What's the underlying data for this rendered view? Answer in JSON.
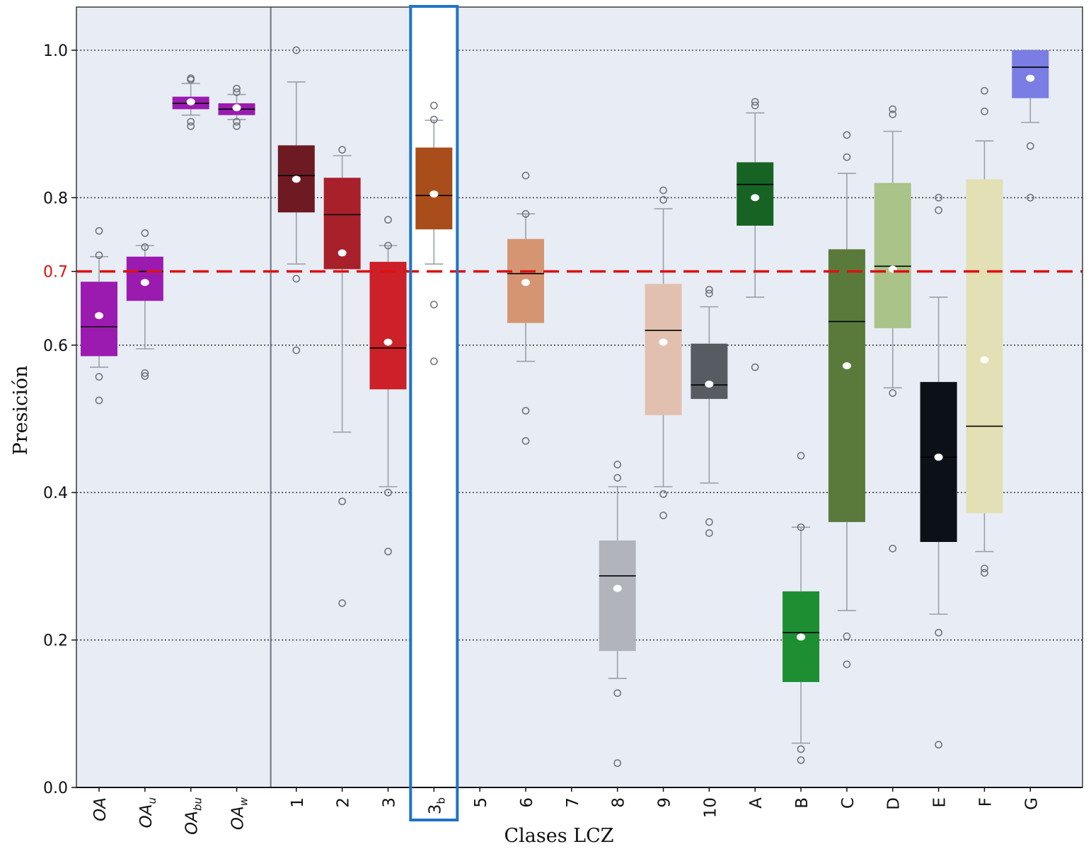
{
  "chart_data": {
    "type": "box",
    "title": "",
    "xlabel": "Clases LCZ",
    "ylabel": "Presición",
    "ylim": [
      0.0,
      1.05
    ],
    "yticks": [
      "0.0",
      "0.2",
      "0.4",
      "0.6",
      "0.7",
      "0.8",
      "1.0"
    ],
    "ytick_values": [
      0.0,
      0.2,
      0.4,
      0.6,
      0.7,
      0.8,
      1.0
    ],
    "grid": "horizontal dotted",
    "reference_line": {
      "value": 0.7,
      "label": "0.7",
      "color": "#dd1111",
      "style": "dashed"
    },
    "highlighted_category": "3b",
    "categories": [
      {
        "id": "OA",
        "label": "OA",
        "sub": "",
        "group": "overall",
        "color": "#9b1bb0",
        "q1": 0.585,
        "median": 0.625,
        "q3": 0.686,
        "mean": 0.64,
        "whisker_low": 0.57,
        "whisker_high": 0.72,
        "outliers": [
          0.755,
          0.722,
          0.557,
          0.525
        ]
      },
      {
        "id": "OAu",
        "label": "OA",
        "sub": "u",
        "group": "overall",
        "color": "#9b1bb0",
        "q1": 0.66,
        "median": 0.7,
        "q3": 0.72,
        "mean": 0.685,
        "whisker_low": 0.595,
        "whisker_high": 0.735,
        "outliers": [
          0.752,
          0.733,
          0.562,
          0.558
        ]
      },
      {
        "id": "OAbu",
        "label": "OA",
        "sub": "bu",
        "group": "overall",
        "color": "#9b1bb0",
        "q1": 0.92,
        "median": 0.928,
        "q3": 0.937,
        "mean": 0.93,
        "whisker_low": 0.912,
        "whisker_high": 0.955,
        "outliers": [
          0.962,
          0.96,
          0.903,
          0.897
        ]
      },
      {
        "id": "OAw",
        "label": "OA",
        "sub": "w",
        "group": "overall",
        "color": "#9b1bb0",
        "q1": 0.912,
        "median": 0.92,
        "q3": 0.928,
        "mean": 0.922,
        "whisker_low": 0.906,
        "whisker_high": 0.94,
        "outliers": [
          0.948,
          0.943,
          0.903,
          0.897
        ]
      },
      {
        "id": "1",
        "label": "1",
        "sub": "",
        "group": "lcz",
        "color": "#6e1a23",
        "q1": 0.78,
        "median": 0.83,
        "q3": 0.871,
        "mean": 0.825,
        "whisker_low": 0.71,
        "whisker_high": 0.957,
        "outliers": [
          1.0,
          0.69,
          0.593
        ]
      },
      {
        "id": "2",
        "label": "2",
        "sub": "",
        "group": "lcz",
        "color": "#a8202a",
        "q1": 0.703,
        "median": 0.777,
        "q3": 0.827,
        "mean": 0.725,
        "whisker_low": 0.482,
        "whisker_high": 0.857,
        "outliers": [
          0.865,
          0.388,
          0.25
        ]
      },
      {
        "id": "3",
        "label": "3",
        "sub": "",
        "group": "lcz",
        "color": "#cc2128",
        "q1": 0.54,
        "median": 0.596,
        "q3": 0.713,
        "mean": 0.604,
        "whisker_low": 0.408,
        "whisker_high": 0.735,
        "outliers": [
          0.77,
          0.735,
          0.4,
          0.32
        ]
      },
      {
        "id": "3b",
        "label": "3",
        "sub": "b",
        "group": "lcz",
        "color": "#a94e1a",
        "q1": 0.757,
        "median": 0.803,
        "q3": 0.868,
        "mean": 0.805,
        "whisker_low": 0.71,
        "whisker_high": 0.905,
        "outliers": [
          0.925,
          0.906,
          0.655,
          0.578
        ]
      },
      {
        "id": "5",
        "label": "5",
        "sub": "",
        "group": "lcz",
        "color": "none",
        "empty": true
      },
      {
        "id": "6",
        "label": "6",
        "sub": "",
        "group": "lcz",
        "color": "#d69572",
        "q1": 0.63,
        "median": 0.697,
        "q3": 0.744,
        "mean": 0.685,
        "whisker_low": 0.578,
        "whisker_high": 0.778,
        "outliers": [
          0.83,
          0.778,
          0.511,
          0.47
        ]
      },
      {
        "id": "7",
        "label": "7",
        "sub": "",
        "group": "lcz",
        "color": "none",
        "empty": true
      },
      {
        "id": "8",
        "label": "8",
        "sub": "",
        "group": "lcz",
        "color": "#b1b4bb",
        "q1": 0.185,
        "median": 0.287,
        "q3": 0.335,
        "mean": 0.27,
        "whisker_low": 0.148,
        "whisker_high": 0.408,
        "outliers": [
          0.438,
          0.42,
          0.128,
          0.033
        ]
      },
      {
        "id": "9",
        "label": "9",
        "sub": "",
        "group": "lcz",
        "color": "#e2c0b0",
        "q1": 0.505,
        "median": 0.62,
        "q3": 0.683,
        "mean": 0.604,
        "whisker_low": 0.408,
        "whisker_high": 0.785,
        "outliers": [
          0.81,
          0.797,
          0.398,
          0.369
        ]
      },
      {
        "id": "10",
        "label": "10",
        "sub": "",
        "group": "lcz",
        "color": "#575c63",
        "q1": 0.527,
        "median": 0.546,
        "q3": 0.602,
        "mean": 0.547,
        "whisker_low": 0.413,
        "whisker_high": 0.652,
        "outliers": [
          0.675,
          0.67,
          0.36,
          0.345
        ]
      },
      {
        "id": "A",
        "label": "A",
        "sub": "",
        "group": "lcz",
        "color": "#176323",
        "q1": 0.762,
        "median": 0.818,
        "q3": 0.848,
        "mean": 0.8,
        "whisker_low": 0.665,
        "whisker_high": 0.915,
        "outliers": [
          0.93,
          0.925,
          0.57
        ]
      },
      {
        "id": "B",
        "label": "B",
        "sub": "",
        "group": "lcz",
        "color": "#1d8f32",
        "q1": 0.143,
        "median": 0.21,
        "q3": 0.266,
        "mean": 0.204,
        "whisker_low": 0.06,
        "whisker_high": 0.353,
        "outliers": [
          0.45,
          0.353,
          0.052,
          0.037
        ]
      },
      {
        "id": "C",
        "label": "C",
        "sub": "",
        "group": "lcz",
        "color": "#5a7a3c",
        "q1": 0.36,
        "median": 0.632,
        "q3": 0.73,
        "mean": 0.572,
        "whisker_low": 0.24,
        "whisker_high": 0.833,
        "outliers": [
          0.885,
          0.855,
          0.205,
          0.167
        ]
      },
      {
        "id": "D",
        "label": "D",
        "sub": "",
        "group": "lcz",
        "color": "#a9c388",
        "q1": 0.623,
        "median": 0.707,
        "q3": 0.82,
        "mean": 0.703,
        "whisker_low": 0.542,
        "whisker_high": 0.89,
        "outliers": [
          0.92,
          0.913,
          0.535,
          0.324
        ]
      },
      {
        "id": "E",
        "label": "E",
        "sub": "",
        "group": "lcz",
        "color": "#0c1118",
        "q1": 0.333,
        "median": 0.448,
        "q3": 0.55,
        "mean": 0.448,
        "whisker_low": 0.235,
        "whisker_high": 0.665,
        "outliers": [
          0.8,
          0.783,
          0.21,
          0.058
        ]
      },
      {
        "id": "F",
        "label": "F",
        "sub": "",
        "group": "lcz",
        "color": "#e2e0b4",
        "q1": 0.372,
        "median": 0.49,
        "q3": 0.825,
        "mean": 0.58,
        "whisker_low": 0.32,
        "whisker_high": 0.877,
        "outliers": [
          0.945,
          0.917,
          0.297,
          0.291
        ]
      },
      {
        "id": "G",
        "label": "G",
        "sub": "",
        "group": "lcz",
        "color": "#7a7de3",
        "q1": 0.935,
        "median": 0.977,
        "q3": 1.0,
        "mean": 0.962,
        "whisker_low": 0.902,
        "whisker_high": 1.0,
        "outliers": [
          0.87,
          0.8
        ]
      }
    ]
  }
}
